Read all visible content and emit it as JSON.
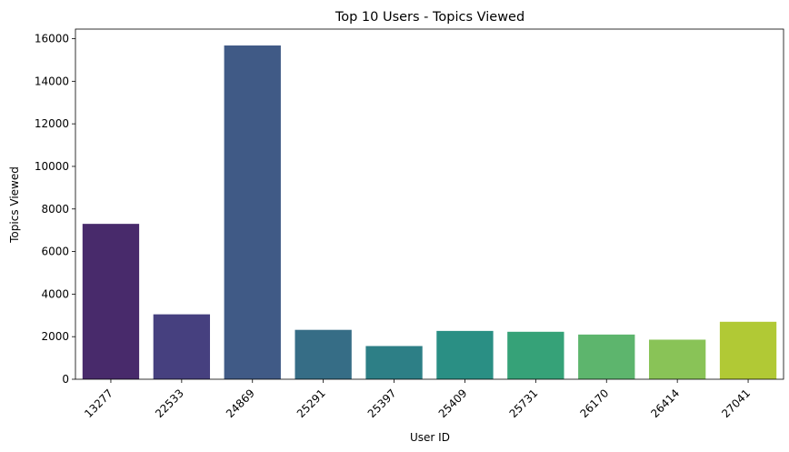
{
  "chart_data": {
    "type": "bar",
    "title": "Top 10 Users - Topics Viewed",
    "xlabel": "User ID",
    "ylabel": "Topics Viewed",
    "categories": [
      "13277",
      "22533",
      "24869",
      "25291",
      "25397",
      "25409",
      "25731",
      "26170",
      "26414",
      "27041"
    ],
    "values": [
      7300,
      3050,
      15680,
      2320,
      1560,
      2270,
      2230,
      2100,
      1860,
      2700
    ],
    "ylim": [
      0,
      16450
    ],
    "yticks": [
      0,
      2000,
      4000,
      6000,
      8000,
      10000,
      12000,
      14000,
      16000
    ],
    "grid": false,
    "legend": "none",
    "colors": [
      "#482a6b",
      "#46407f",
      "#405a86",
      "#366d86",
      "#2d7f86",
      "#2a8f84",
      "#36a278",
      "#5db56d",
      "#89c357",
      "#b1c935"
    ]
  }
}
